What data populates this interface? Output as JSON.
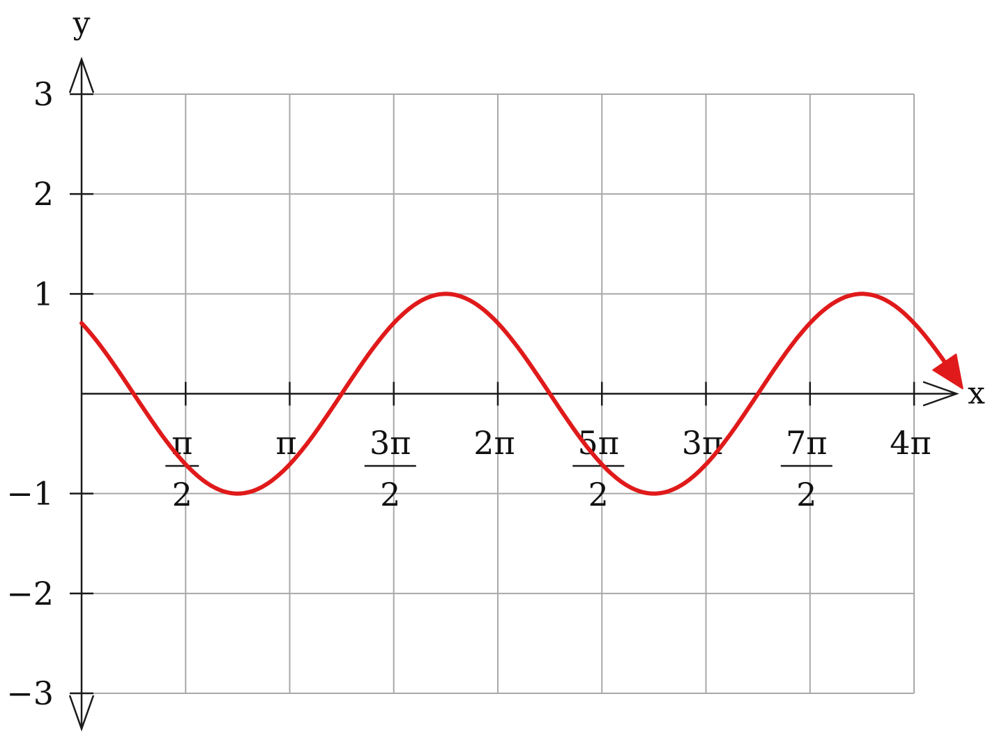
{
  "chart_data": {
    "type": "line",
    "title": "",
    "xlabel": "x",
    "ylabel": "y",
    "xlim": [
      0,
      12.566
    ],
    "ylim": [
      -3,
      3
    ],
    "grid": true,
    "y_ticks": [
      {
        "value": 3,
        "label": "3"
      },
      {
        "value": 2,
        "label": "2"
      },
      {
        "value": 1,
        "label": "1"
      },
      {
        "value": -1,
        "label": "−1"
      },
      {
        "value": -2,
        "label": "−2"
      },
      {
        "value": -3,
        "label": "−3"
      }
    ],
    "x_ticks": [
      {
        "value": 1.5708,
        "num": "π",
        "den": "2"
      },
      {
        "value": 3.1416,
        "label": "π"
      },
      {
        "value": 4.7124,
        "num": "3π",
        "den": "2"
      },
      {
        "value": 6.2832,
        "label": "2π"
      },
      {
        "value": 7.854,
        "num": "5π",
        "den": "2"
      },
      {
        "value": 9.4248,
        "label": "3π"
      },
      {
        "value": 10.9956,
        "num": "7π",
        "den": "2"
      },
      {
        "value": 12.5664,
        "label": "4π"
      }
    ],
    "series": [
      {
        "function": "cos(x + π/4)",
        "x_range": [
          0,
          13.3
        ],
        "color": "#e01a1a",
        "end_arrow": true
      }
    ]
  }
}
